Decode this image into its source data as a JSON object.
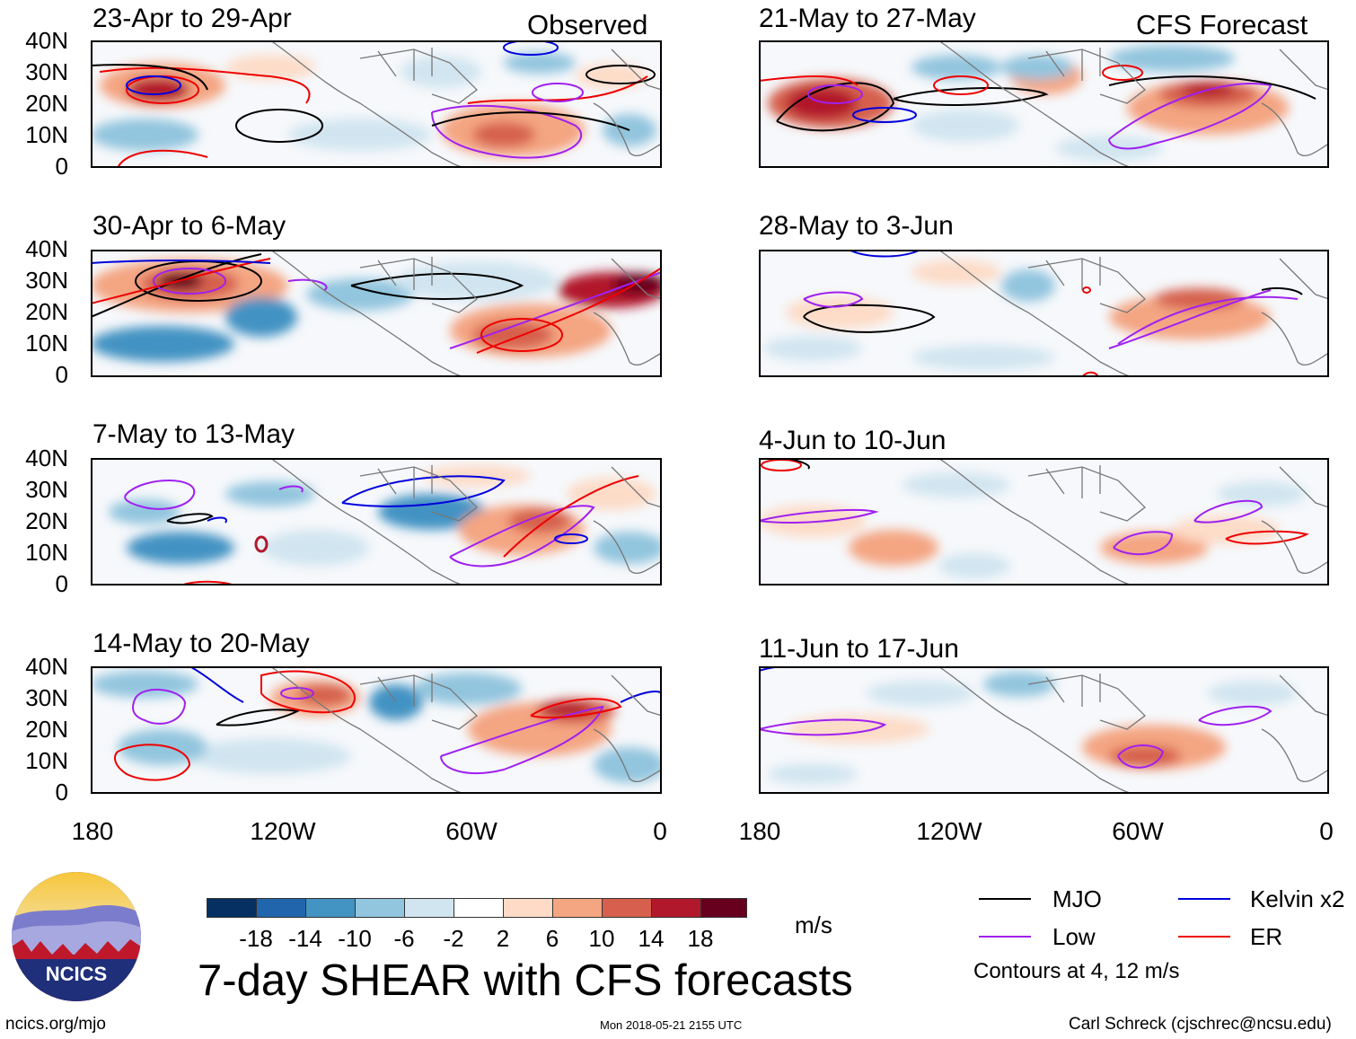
{
  "observed_label": "Observed",
  "forecast_label": "CFS Forecast",
  "panels": {
    "obs": [
      {
        "title": "23-Apr to 29-Apr"
      },
      {
        "title": "30-Apr to 6-May"
      },
      {
        "title": "7-May to 13-May"
      },
      {
        "title": "14-May to 20-May"
      }
    ],
    "fcst": [
      {
        "title": "21-May to 27-May"
      },
      {
        "title": "28-May to 3-Jun"
      },
      {
        "title": "4-Jun to 10-Jun"
      },
      {
        "title": "11-Jun to 17-Jun"
      }
    ]
  },
  "lat_labels": [
    "40N",
    "30N",
    "20N",
    "10N",
    "0"
  ],
  "lon_labels": [
    "180",
    "120W",
    "60W",
    "0"
  ],
  "colorbar": {
    "unit": "m/s",
    "ticks": [
      "-18",
      "-14",
      "-10",
      "-6",
      "-2",
      "2",
      "6",
      "10",
      "14",
      "18"
    ],
    "colors": [
      "#053061",
      "#2166ac",
      "#4393c3",
      "#92c5de",
      "#d1e5f0",
      "#ffffff",
      "#fddbc7",
      "#f4a582",
      "#d6604d",
      "#b2182b",
      "#67001f"
    ]
  },
  "legend": {
    "items": [
      {
        "label": "MJO",
        "color": "#000000"
      },
      {
        "label": "Kelvin x2",
        "color": "#0000dd"
      },
      {
        "label": "Low",
        "color": "#a020f0"
      },
      {
        "label": "ER",
        "color": "#ee0000"
      }
    ],
    "note": "Contours at 4, 12 m/s"
  },
  "main_title": "7-day SHEAR with CFS forecasts",
  "logo_text": "NCICS",
  "footer": {
    "url": "ncics.org/mjo",
    "timestamp": "Mon 2018-05-21 2155 UTC",
    "credit": "Carl Schreck (cjschrec@ncsu.edu)"
  }
}
